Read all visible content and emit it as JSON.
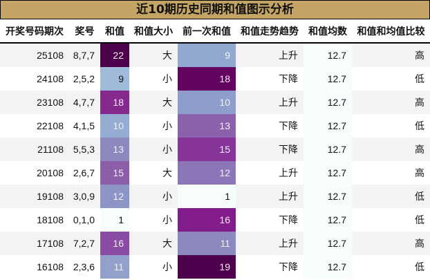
{
  "title": "近10期历史同期和值图示分析",
  "columns": [
    "开奖号码期次",
    "奖号",
    "和值",
    "和值大小",
    "前一次和值",
    "和值走势趋势",
    "和值均数",
    "和值和均值比较"
  ],
  "colors": {
    "title_bg": "#c4a464",
    "row_odd": "#f3f3f3",
    "row_even": "#ffffff",
    "mean_bg": "#f7fcfd",
    "colormap": "BuPu"
  },
  "rows": [
    {
      "period": "25108",
      "numbers": "8,7,7",
      "sum": "22",
      "sum_color": "#4d004b",
      "size": "大",
      "prev_sum": "9",
      "prev_color": "#93a8d0",
      "trend": "上升",
      "mean": "12.7",
      "compare": "高"
    },
    {
      "period": "24108",
      "numbers": "2,5,2",
      "sum": "9",
      "sum_color": "#9fbbd9",
      "size": "小",
      "prev_sum": "18",
      "prev_color": "#650360",
      "trend": "下降",
      "mean": "12.7",
      "compare": "低"
    },
    {
      "period": "23108",
      "numbers": "4,7,7",
      "sum": "18",
      "sum_color": "#85298e",
      "size": "大",
      "prev_sum": "10",
      "prev_color": "#8e9dcb",
      "trend": "上升",
      "mean": "12.7",
      "compare": "高"
    },
    {
      "period": "22108",
      "numbers": "4,1,5",
      "sum": "10",
      "sum_color": "#95add3",
      "size": "小",
      "prev_sum": "13",
      "prev_color": "#8c61ab",
      "trend": "下降",
      "mean": "12.7",
      "compare": "低"
    },
    {
      "period": "21108",
      "numbers": "5,5,3",
      "sum": "13",
      "sum_color": "#8c89bf",
      "size": "小",
      "prev_sum": "15",
      "prev_color": "#86349a",
      "trend": "下降",
      "mean": "12.7",
      "compare": "高"
    },
    {
      "period": "20108",
      "numbers": "2,6,7",
      "sum": "15",
      "sum_color": "#8c5eaa",
      "size": "大",
      "prev_sum": "12",
      "prev_color": "#8c76b7",
      "trend": "上升",
      "mean": "12.7",
      "compare": "高"
    },
    {
      "period": "19108",
      "numbers": "3,0,9",
      "sum": "12",
      "sum_color": "#8c95c6",
      "size": "小",
      "prev_sum": "1",
      "prev_color": "#f7fcfd",
      "trend": "上升",
      "mean": "12.7",
      "compare": "低"
    },
    {
      "period": "18108",
      "numbers": "0,1,0",
      "sum": "1",
      "sum_color": "#f7fcfd",
      "size": "小",
      "prev_sum": "16",
      "prev_color": "#831d8b",
      "trend": "下降",
      "mean": "12.7",
      "compare": "低"
    },
    {
      "period": "17108",
      "numbers": "7,2,7",
      "sum": "16",
      "sum_color": "#8a4ba3",
      "size": "大",
      "prev_sum": "11",
      "prev_color": "#8c89bf",
      "trend": "上升",
      "mean": "12.7",
      "compare": "高"
    },
    {
      "period": "16108",
      "numbers": "2,3,6",
      "sum": "11",
      "sum_color": "#93a0cc",
      "size": "小",
      "prev_sum": "19",
      "prev_color": "#4d004b",
      "trend": "下降",
      "mean": "12.7",
      "compare": "低"
    }
  ]
}
